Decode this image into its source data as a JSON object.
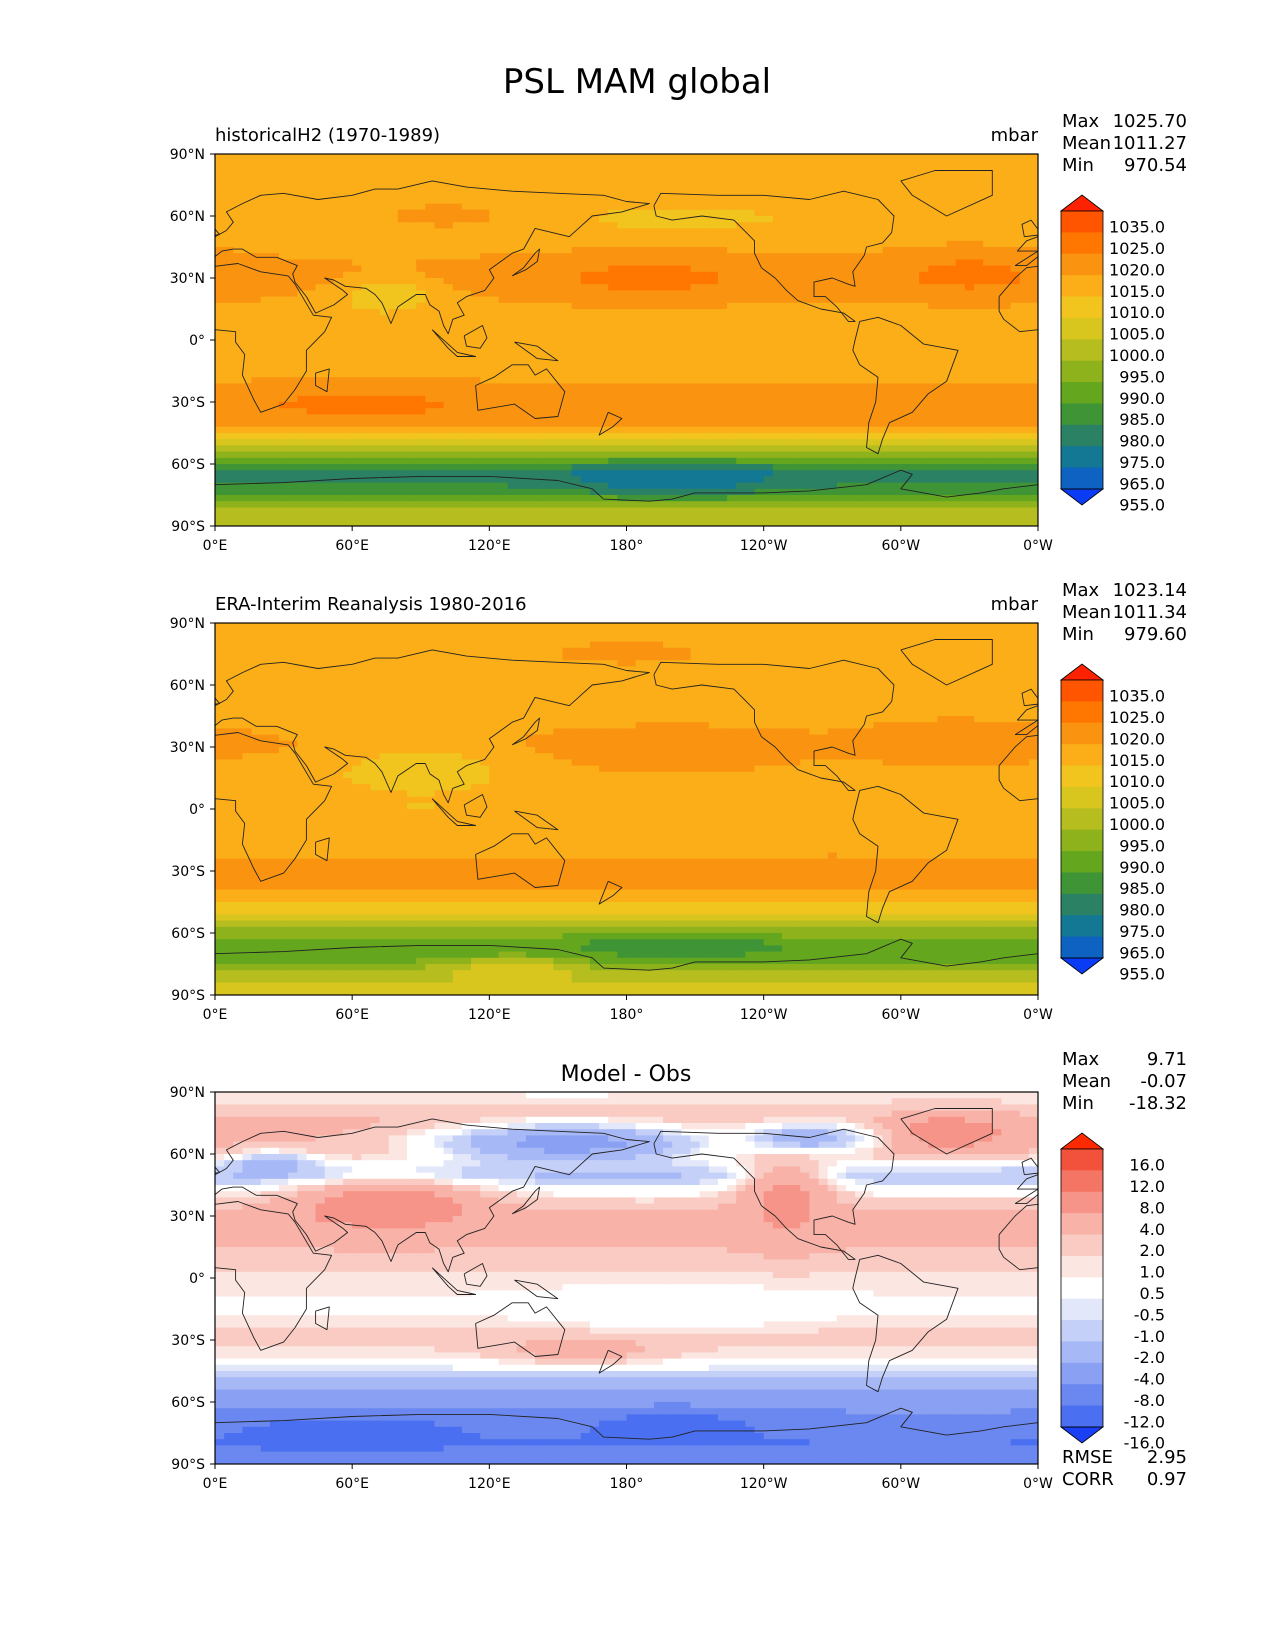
{
  "figure_title": "PSL MAM global",
  "chart_data": [
    {
      "type": "heatmap",
      "name": "model",
      "title_left": "historicalH2 (1970-1989)",
      "title_center": "",
      "units": "mbar",
      "stats": [
        {
          "label": "Max",
          "value": "1025.70"
        },
        {
          "label": "Mean",
          "value": "1011.27"
        },
        {
          "label": "Min",
          "value": "970.54"
        }
      ],
      "extra_stats": [],
      "x_ticks": [
        "0°E",
        "60°E",
        "120°E",
        "180°",
        "120°W",
        "60°W",
        "0°W"
      ],
      "y_ticks": [
        "90°N",
        "60°N",
        "30°N",
        "0°",
        "30°S",
        "60°S",
        "90°S"
      ],
      "colorbar": {
        "levels": [
          "1035.0",
          "1025.0",
          "1020.0",
          "1015.0",
          "1010.0",
          "1005.0",
          "1000.0",
          "995.0",
          "990.0",
          "985.0",
          "980.0",
          "975.0",
          "965.0",
          "955.0"
        ],
        "colors": [
          "#ff2200",
          "#ff5500",
          "#ff7700",
          "#fa9410",
          "#fbae18",
          "#f1c41e",
          "#d8c61e",
          "#b6bd1e",
          "#8eb21c",
          "#64a71e",
          "#3f9436",
          "#2b8163",
          "#137894",
          "#0d62c2",
          "#0a3cf5"
        ]
      },
      "lat_bands": [
        {
          "lat": 90,
          "v": 1013
        },
        {
          "lat": 75,
          "v": 1014
        },
        {
          "lat": 60,
          "v": 1010
        },
        {
          "lat": 45,
          "v": 1013
        },
        {
          "lat": 30,
          "v": 1018
        },
        {
          "lat": 15,
          "v": 1013
        },
        {
          "lat": 0,
          "v": 1011
        },
        {
          "lat": -15,
          "v": 1013
        },
        {
          "lat": -30,
          "v": 1019
        },
        {
          "lat": -40,
          "v": 1016
        },
        {
          "lat": -50,
          "v": 1003
        },
        {
          "lat": -60,
          "v": 985
        },
        {
          "lat": -65,
          "v": 976
        },
        {
          "lat": -72,
          "v": 982
        },
        {
          "lat": -80,
          "v": 995
        },
        {
          "lat": -90,
          "v": 1000
        }
      ],
      "anomalies": [
        {
          "lon": 190,
          "lat": 30,
          "dlon": 55,
          "dlat": 12,
          "v": 1021
        },
        {
          "lon": 330,
          "lat": 32,
          "dlon": 40,
          "dlat": 13,
          "v": 1021
        },
        {
          "lon": 65,
          "lat": -32,
          "dlon": 50,
          "dlat": 8,
          "v": 1021
        },
        {
          "lon": 100,
          "lat": 60,
          "dlon": 45,
          "dlat": 10,
          "v": 1016
        },
        {
          "lon": 200,
          "lat": -68,
          "dlon": 45,
          "dlat": 8,
          "v": 971
        },
        {
          "lon": 75,
          "lat": 22,
          "dlon": 25,
          "dlat": 10,
          "v": 1007
        },
        {
          "lon": 200,
          "lat": 58,
          "dlon": 30,
          "dlat": 5,
          "v": 1008
        }
      ]
    },
    {
      "type": "heatmap",
      "name": "obs",
      "title_left": "ERA-Interim Reanalysis 1980-2016",
      "title_center": "",
      "units": "mbar",
      "stats": [
        {
          "label": "Max",
          "value": "1023.14"
        },
        {
          "label": "Mean",
          "value": "1011.34"
        },
        {
          "label": "Min",
          "value": "979.60"
        }
      ],
      "extra_stats": [],
      "x_ticks": [
        "0°E",
        "60°E",
        "120°E",
        "180°",
        "120°W",
        "60°W",
        "0°W"
      ],
      "y_ticks": [
        "90°N",
        "60°N",
        "30°N",
        "0°",
        "30°S",
        "60°S",
        "90°S"
      ],
      "colorbar": {
        "levels": [
          "1035.0",
          "1025.0",
          "1020.0",
          "1015.0",
          "1010.0",
          "1005.0",
          "1000.0",
          "995.0",
          "990.0",
          "985.0",
          "980.0",
          "975.0",
          "965.0",
          "955.0"
        ],
        "colors": [
          "#ff2200",
          "#ff5500",
          "#ff7700",
          "#fa9410",
          "#fbae18",
          "#f1c41e",
          "#d8c61e",
          "#b6bd1e",
          "#8eb21c",
          "#64a71e",
          "#3f9436",
          "#2b8163",
          "#137894",
          "#0d62c2",
          "#0a3cf5"
        ]
      },
      "lat_bands": [
        {
          "lat": 90,
          "v": 1014
        },
        {
          "lat": 75,
          "v": 1013
        },
        {
          "lat": 60,
          "v": 1011
        },
        {
          "lat": 45,
          "v": 1013
        },
        {
          "lat": 30,
          "v": 1016
        },
        {
          "lat": 15,
          "v": 1012
        },
        {
          "lat": 0,
          "v": 1010
        },
        {
          "lat": -15,
          "v": 1013
        },
        {
          "lat": -30,
          "v": 1017
        },
        {
          "lat": -40,
          "v": 1015
        },
        {
          "lat": -50,
          "v": 1005
        },
        {
          "lat": -60,
          "v": 993
        },
        {
          "lat": -65,
          "v": 985
        },
        {
          "lat": -72,
          "v": 987
        },
        {
          "lat": -80,
          "v": 997
        },
        {
          "lat": -90,
          "v": 1003
        }
      ],
      "anomalies": [
        {
          "lon": 180,
          "lat": 75,
          "dlon": 45,
          "dlat": 8,
          "v": 1016
        },
        {
          "lon": 200,
          "lat": 28,
          "dlon": 45,
          "dlat": 10,
          "v": 1020
        },
        {
          "lon": 325,
          "lat": 32,
          "dlon": 35,
          "dlat": 10,
          "v": 1020
        },
        {
          "lon": 90,
          "lat": 20,
          "dlon": 45,
          "dlat": 12,
          "v": 1008
        },
        {
          "lon": 200,
          "lat": -68,
          "dlon": 40,
          "dlat": 6,
          "v": 983
        },
        {
          "lon": 130,
          "lat": -78,
          "dlon": 30,
          "dlat": 6,
          "v": 1004
        }
      ]
    },
    {
      "type": "heatmap",
      "name": "diff",
      "title_left": "",
      "title_center": "Model - Obs",
      "units": "",
      "stats": [
        {
          "label": "Max",
          "value": "9.71"
        },
        {
          "label": "Mean",
          "value": "-0.07"
        },
        {
          "label": "Min",
          "value": "-18.32"
        }
      ],
      "extra_stats": [
        {
          "label": "RMSE",
          "value": "2.95"
        },
        {
          "label": "CORR",
          "value": "0.97"
        }
      ],
      "x_ticks": [
        "0°E",
        "60°E",
        "120°E",
        "180°",
        "120°W",
        "60°W",
        "0°W"
      ],
      "y_ticks": [
        "90°N",
        "60°N",
        "30°N",
        "0°",
        "30°S",
        "60°S",
        "90°S"
      ],
      "colorbar": {
        "levels": [
          "16.0",
          "12.0",
          "8.0",
          "4.0",
          "2.0",
          "1.0",
          "0.5",
          "-0.5",
          "-1.0",
          "-2.0",
          "-4.0",
          "-8.0",
          "-12.0",
          "-16.0"
        ],
        "colors": [
          "#ff2a00",
          "#f2523c",
          "#f57565",
          "#f69489",
          "#f8b2a8",
          "#f9cbc3",
          "#fbe6e2",
          "#ffffff",
          "#e2e8fa",
          "#c5d0f8",
          "#a7b8f6",
          "#8aa1f3",
          "#6a88f0",
          "#4a6ff0",
          "#1a3ff5"
        ]
      },
      "lat_bands": [
        {
          "lat": 90,
          "v": 0.3
        },
        {
          "lat": 75,
          "v": 2.5
        },
        {
          "lat": 60,
          "v": 2.0
        },
        {
          "lat": 50,
          "v": -2.0
        },
        {
          "lat": 40,
          "v": 0.5
        },
        {
          "lat": 30,
          "v": 2.5
        },
        {
          "lat": 15,
          "v": 2.0
        },
        {
          "lat": 0,
          "v": 0.8
        },
        {
          "lat": -15,
          "v": 0.3
        },
        {
          "lat": -30,
          "v": 1.5
        },
        {
          "lat": -40,
          "v": 0.2
        },
        {
          "lat": -48,
          "v": -1.5
        },
        {
          "lat": -55,
          "v": -4.0
        },
        {
          "lat": -62,
          "v": -7.0
        },
        {
          "lat": -70,
          "v": -10.0
        },
        {
          "lat": -80,
          "v": -12.0
        },
        {
          "lat": -90,
          "v": -9.0
        }
      ],
      "anomalies": [
        {
          "lon": 155,
          "lat": 65,
          "dlon": 60,
          "dlat": 10,
          "v": -5.0
        },
        {
          "lon": 75,
          "lat": 35,
          "dlon": 40,
          "dlat": 12,
          "v": 6.0
        },
        {
          "lon": 250,
          "lat": 38,
          "dlon": 20,
          "dlat": 20,
          "v": 5.0
        },
        {
          "lon": 320,
          "lat": 70,
          "dlon": 25,
          "dlat": 8,
          "v": 6.0
        },
        {
          "lon": 260,
          "lat": 68,
          "dlon": 30,
          "dlat": 8,
          "v": -3.0
        },
        {
          "lon": 200,
          "lat": -15,
          "dlon": 60,
          "dlat": 10,
          "v": -0.2
        },
        {
          "lon": 160,
          "lat": -35,
          "dlon": 35,
          "dlat": 6,
          "v": 3.0
        },
        {
          "lon": 60,
          "lat": -75,
          "dlon": 40,
          "dlat": 8,
          "v": -16.0
        },
        {
          "lon": 200,
          "lat": -72,
          "dlon": 40,
          "dlat": 8,
          "v": -14.0
        },
        {
          "lon": 25,
          "lat": 55,
          "dlon": 20,
          "dlat": 6,
          "v": -3.0
        }
      ]
    }
  ]
}
